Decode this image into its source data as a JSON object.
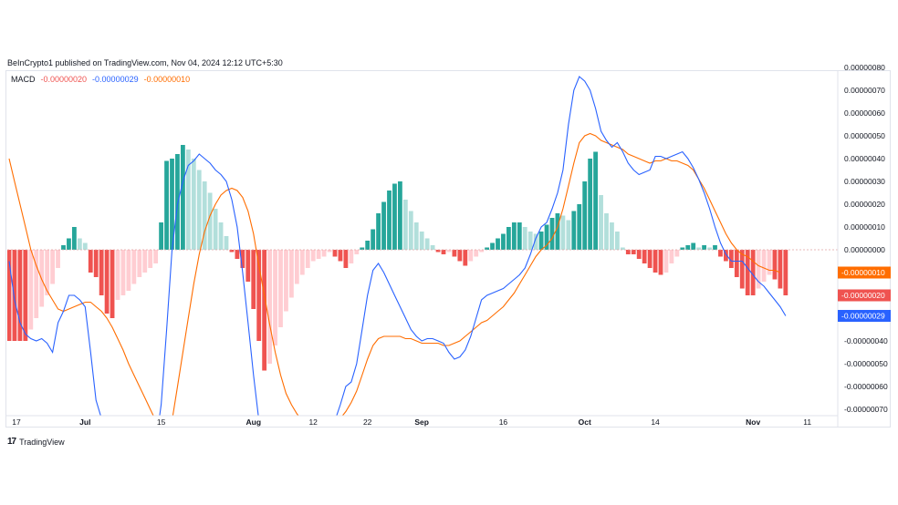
{
  "header": {
    "published_text": "BeInCrypto1 published on TradingView.com, Nov 04, 2024 12:12 UTC+5:30"
  },
  "legend": {
    "name": "MACD",
    "hist_value": "-0.00000020",
    "macd_value": "-0.00000029",
    "signal_value": "-0.00000010"
  },
  "footer": {
    "brand": "TradingView"
  },
  "colors": {
    "hist_pos_strong": "#26a69a",
    "hist_pos_weak": "#b2dfdb",
    "hist_neg_strong": "#ef5350",
    "hist_neg_weak": "#ffcdd2",
    "macd_line": "#2962ff",
    "signal_line": "#ff6d00",
    "zero_line": "#e0a3a3"
  },
  "chart_data": {
    "type": "bar",
    "title": "",
    "xlabel": "",
    "ylabel": "",
    "ylim": [
      -7e-07,
      8e-07
    ],
    "y_ticks": [
      "0.00000080",
      "0.00000070",
      "0.00000060",
      "0.00000050",
      "0.00000040",
      "0.00000030",
      "0.00000020",
      "0.00000010",
      "0.00000000",
      "-0.00000040",
      "-0.00000050",
      "-0.00000060",
      "-0.00000070"
    ],
    "y_tick_values": [
      8e-07,
      7e-07,
      6e-07,
      5e-07,
      4e-07,
      3e-07,
      2e-07,
      1e-07,
      0,
      -4e-07,
      -5e-07,
      -6e-07,
      -7e-07
    ],
    "x_ticks": [
      {
        "label": "17",
        "index": 0
      },
      {
        "label": "Jul",
        "index": 14
      },
      {
        "label": "15",
        "index": 28
      },
      {
        "label": "Aug",
        "index": 45
      },
      {
        "label": "12",
        "index": 56
      },
      {
        "label": "22",
        "index": 66
      },
      {
        "label": "Sep",
        "index": 76
      },
      {
        "label": "16",
        "index": 91
      },
      {
        "label": "Oct",
        "index": 106
      },
      {
        "label": "14",
        "index": 119
      },
      {
        "label": "Nov",
        "index": 137
      },
      {
        "label": "11",
        "index": 147
      }
    ],
    "badges": [
      {
        "label": "-0.00000010",
        "value": -1e-07,
        "color": "#ff6d00"
      },
      {
        "label": "-0.00000020",
        "value": -2e-07,
        "color": "#ef5350"
      },
      {
        "label": "-0.00000029",
        "value": -2.9e-07,
        "color": "#2962ff"
      }
    ],
    "series": [
      {
        "name": "Histogram",
        "kind": "histogram",
        "values": [
          -0.4,
          -0.4,
          -0.4,
          -0.4,
          -0.35,
          -0.3,
          -0.25,
          -0.2,
          -0.15,
          -0.08,
          0.02,
          0.05,
          0.1,
          0.05,
          0.03,
          -0.1,
          -0.12,
          -0.2,
          -0.28,
          -0.3,
          -0.22,
          -0.2,
          -0.18,
          -0.15,
          -0.12,
          -0.1,
          -0.08,
          -0.06,
          0.12,
          0.39,
          0.4,
          0.42,
          0.46,
          0.44,
          0.4,
          0.35,
          0.3,
          0.25,
          0.18,
          0.12,
          0.06,
          -0.01,
          -0.04,
          -0.08,
          -0.14,
          -0.26,
          -0.4,
          -0.53,
          -0.5,
          -0.42,
          -0.34,
          -0.27,
          -0.21,
          -0.15,
          -0.11,
          -0.08,
          -0.05,
          -0.04,
          -0.03,
          -0.01,
          -0.03,
          -0.05,
          -0.08,
          -0.06,
          -0.02,
          0.01,
          0.04,
          0.09,
          0.16,
          0.21,
          0.26,
          0.29,
          0.3,
          0.22,
          0.17,
          0.12,
          0.08,
          0.05,
          0.02,
          -0.01,
          -0.02,
          -0.01,
          -0.03,
          -0.05,
          -0.07,
          -0.05,
          -0.03,
          -0.01,
          0.01,
          0.03,
          0.05,
          0.07,
          0.1,
          0.12,
          0.12,
          0.1,
          0.08,
          0.07,
          0.08,
          0.11,
          0.14,
          0.16,
          0.15,
          0.13,
          0.17,
          0.2,
          0.3,
          0.4,
          0.43,
          0.24,
          0.16,
          0.12,
          0.08,
          0.01,
          -0.02,
          -0.02,
          -0.04,
          -0.06,
          -0.08,
          -0.1,
          -0.11,
          -0.1,
          -0.06,
          -0.03,
          0.01,
          0.02,
          0.03,
          0.01,
          0.02,
          0.01,
          0.02,
          -0.03,
          -0.05,
          -0.08,
          -0.12,
          -0.17,
          -0.2,
          -0.2,
          -0.17,
          -0.14,
          -0.11,
          -0.13,
          -0.17,
          -0.2
        ],
        "scale": 1e-06
      },
      {
        "name": "MACD",
        "kind": "line",
        "values": [
          -0.05,
          -0.22,
          -0.32,
          -0.37,
          -0.39,
          -0.4,
          -0.39,
          -0.41,
          -0.45,
          -0.32,
          -0.27,
          -0.2,
          -0.2,
          -0.22,
          -0.25,
          -0.45,
          -0.66,
          -0.74,
          -0.8,
          -0.85,
          -0.9,
          -0.95,
          -0.98,
          -1.0,
          -1.0,
          -1.0,
          -0.97,
          -0.85,
          -0.68,
          -0.35,
          0.0,
          0.2,
          0.3,
          0.37,
          0.39,
          0.42,
          0.4,
          0.38,
          0.35,
          0.33,
          0.3,
          0.22,
          0.1,
          -0.1,
          -0.32,
          -0.55,
          -0.75,
          -0.85,
          -0.9,
          -0.95,
          -0.97,
          -0.98,
          -0.98,
          -0.98,
          -0.97,
          -0.95,
          -0.92,
          -0.88,
          -0.84,
          -0.8,
          -0.75,
          -0.68,
          -0.6,
          -0.58,
          -0.5,
          -0.35,
          -0.2,
          -0.09,
          -0.06,
          -0.1,
          -0.15,
          -0.2,
          -0.25,
          -0.3,
          -0.35,
          -0.38,
          -0.4,
          -0.39,
          -0.39,
          -0.4,
          -0.41,
          -0.45,
          -0.48,
          -0.47,
          -0.44,
          -0.38,
          -0.3,
          -0.22,
          -0.2,
          -0.19,
          -0.18,
          -0.17,
          -0.15,
          -0.13,
          -0.11,
          -0.08,
          -0.02,
          0.05,
          0.1,
          0.12,
          0.18,
          0.25,
          0.35,
          0.55,
          0.7,
          0.76,
          0.74,
          0.7,
          0.62,
          0.52,
          0.48,
          0.45,
          0.47,
          0.43,
          0.38,
          0.35,
          0.33,
          0.34,
          0.35,
          0.41,
          0.41,
          0.4,
          0.41,
          0.42,
          0.43,
          0.4,
          0.36,
          0.31,
          0.25,
          0.18,
          0.1,
          0.03,
          -0.02,
          -0.05,
          -0.05,
          -0.05,
          -0.08,
          -0.11,
          -0.14,
          -0.16,
          -0.19,
          -0.22,
          -0.25,
          -0.29
        ],
        "scale": 1e-06
      },
      {
        "name": "Signal",
        "kind": "line",
        "values": [
          0.4,
          0.3,
          0.2,
          0.1,
          0.0,
          -0.07,
          -0.13,
          -0.18,
          -0.22,
          -0.26,
          -0.27,
          -0.26,
          -0.25,
          -0.24,
          -0.23,
          -0.23,
          -0.25,
          -0.27,
          -0.3,
          -0.34,
          -0.39,
          -0.44,
          -0.5,
          -0.55,
          -0.6,
          -0.65,
          -0.7,
          -0.75,
          -0.78,
          -0.8,
          -0.75,
          -0.6,
          -0.45,
          -0.3,
          -0.15,
          -0.02,
          0.08,
          0.15,
          0.2,
          0.24,
          0.26,
          0.27,
          0.26,
          0.23,
          0.17,
          0.07,
          -0.07,
          -0.2,
          -0.33,
          -0.45,
          -0.55,
          -0.63,
          -0.68,
          -0.72,
          -0.75,
          -0.77,
          -0.78,
          -0.78,
          -0.78,
          -0.77,
          -0.76,
          -0.74,
          -0.71,
          -0.67,
          -0.62,
          -0.55,
          -0.48,
          -0.42,
          -0.39,
          -0.38,
          -0.38,
          -0.38,
          -0.38,
          -0.39,
          -0.39,
          -0.4,
          -0.41,
          -0.41,
          -0.41,
          -0.41,
          -0.42,
          -0.42,
          -0.41,
          -0.4,
          -0.38,
          -0.36,
          -0.34,
          -0.32,
          -0.31,
          -0.29,
          -0.27,
          -0.25,
          -0.22,
          -0.19,
          -0.15,
          -0.11,
          -0.07,
          -0.03,
          0.0,
          0.02,
          0.05,
          0.1,
          0.18,
          0.28,
          0.38,
          0.47,
          0.5,
          0.51,
          0.5,
          0.48,
          0.47,
          0.46,
          0.45,
          0.44,
          0.42,
          0.41,
          0.4,
          0.39,
          0.38,
          0.39,
          0.39,
          0.4,
          0.39,
          0.39,
          0.38,
          0.37,
          0.35,
          0.31,
          0.27,
          0.22,
          0.17,
          0.12,
          0.07,
          0.03,
          0.0,
          -0.02,
          -0.03,
          -0.05,
          -0.07,
          -0.08,
          -0.09,
          -0.09,
          -0.1
        ],
        "scale": 1e-06
      }
    ]
  }
}
